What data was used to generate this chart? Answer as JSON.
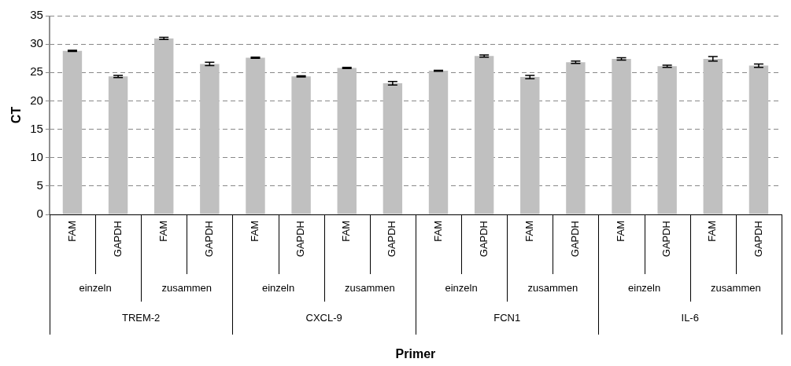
{
  "chart_data": {
    "type": "bar",
    "ylabel": "CT",
    "categories": [
      "FAM",
      "GAPDH",
      "FAM",
      "GAPDH",
      "FAM",
      "GAPDH",
      "FAM",
      "GAPDH",
      "FAM",
      "GAPDH",
      "FAM",
      "GAPDH",
      "FAM",
      "GAPDH",
      "FAM",
      "GAPDH"
    ],
    "values": [
      28.8,
      24.3,
      31.0,
      26.5,
      27.6,
      24.3,
      25.8,
      23.1,
      25.3,
      27.9,
      24.2,
      26.8,
      27.4,
      26.1,
      27.4,
      26.2
    ],
    "errors": [
      0.1,
      0.2,
      0.2,
      0.3,
      0.1,
      0.1,
      0.1,
      0.3,
      0.1,
      0.2,
      0.3,
      0.2,
      0.2,
      0.2,
      0.4,
      0.3
    ],
    "color": "#c0c0c0",
    "ylim": [
      0,
      35
    ],
    "yticks": [
      0,
      5,
      10,
      15,
      20,
      25,
      30,
      35
    ],
    "grid": "y",
    "legend": false,
    "annotations": [
      "einzeln",
      "zusammen",
      "einzeln",
      "zusammen",
      "einzeln",
      "zusammen",
      "einzeln",
      "zusammen",
      "TREM-2",
      "CXCL-9",
      "FCN1",
      "IL-6",
      "Primer"
    ]
  }
}
